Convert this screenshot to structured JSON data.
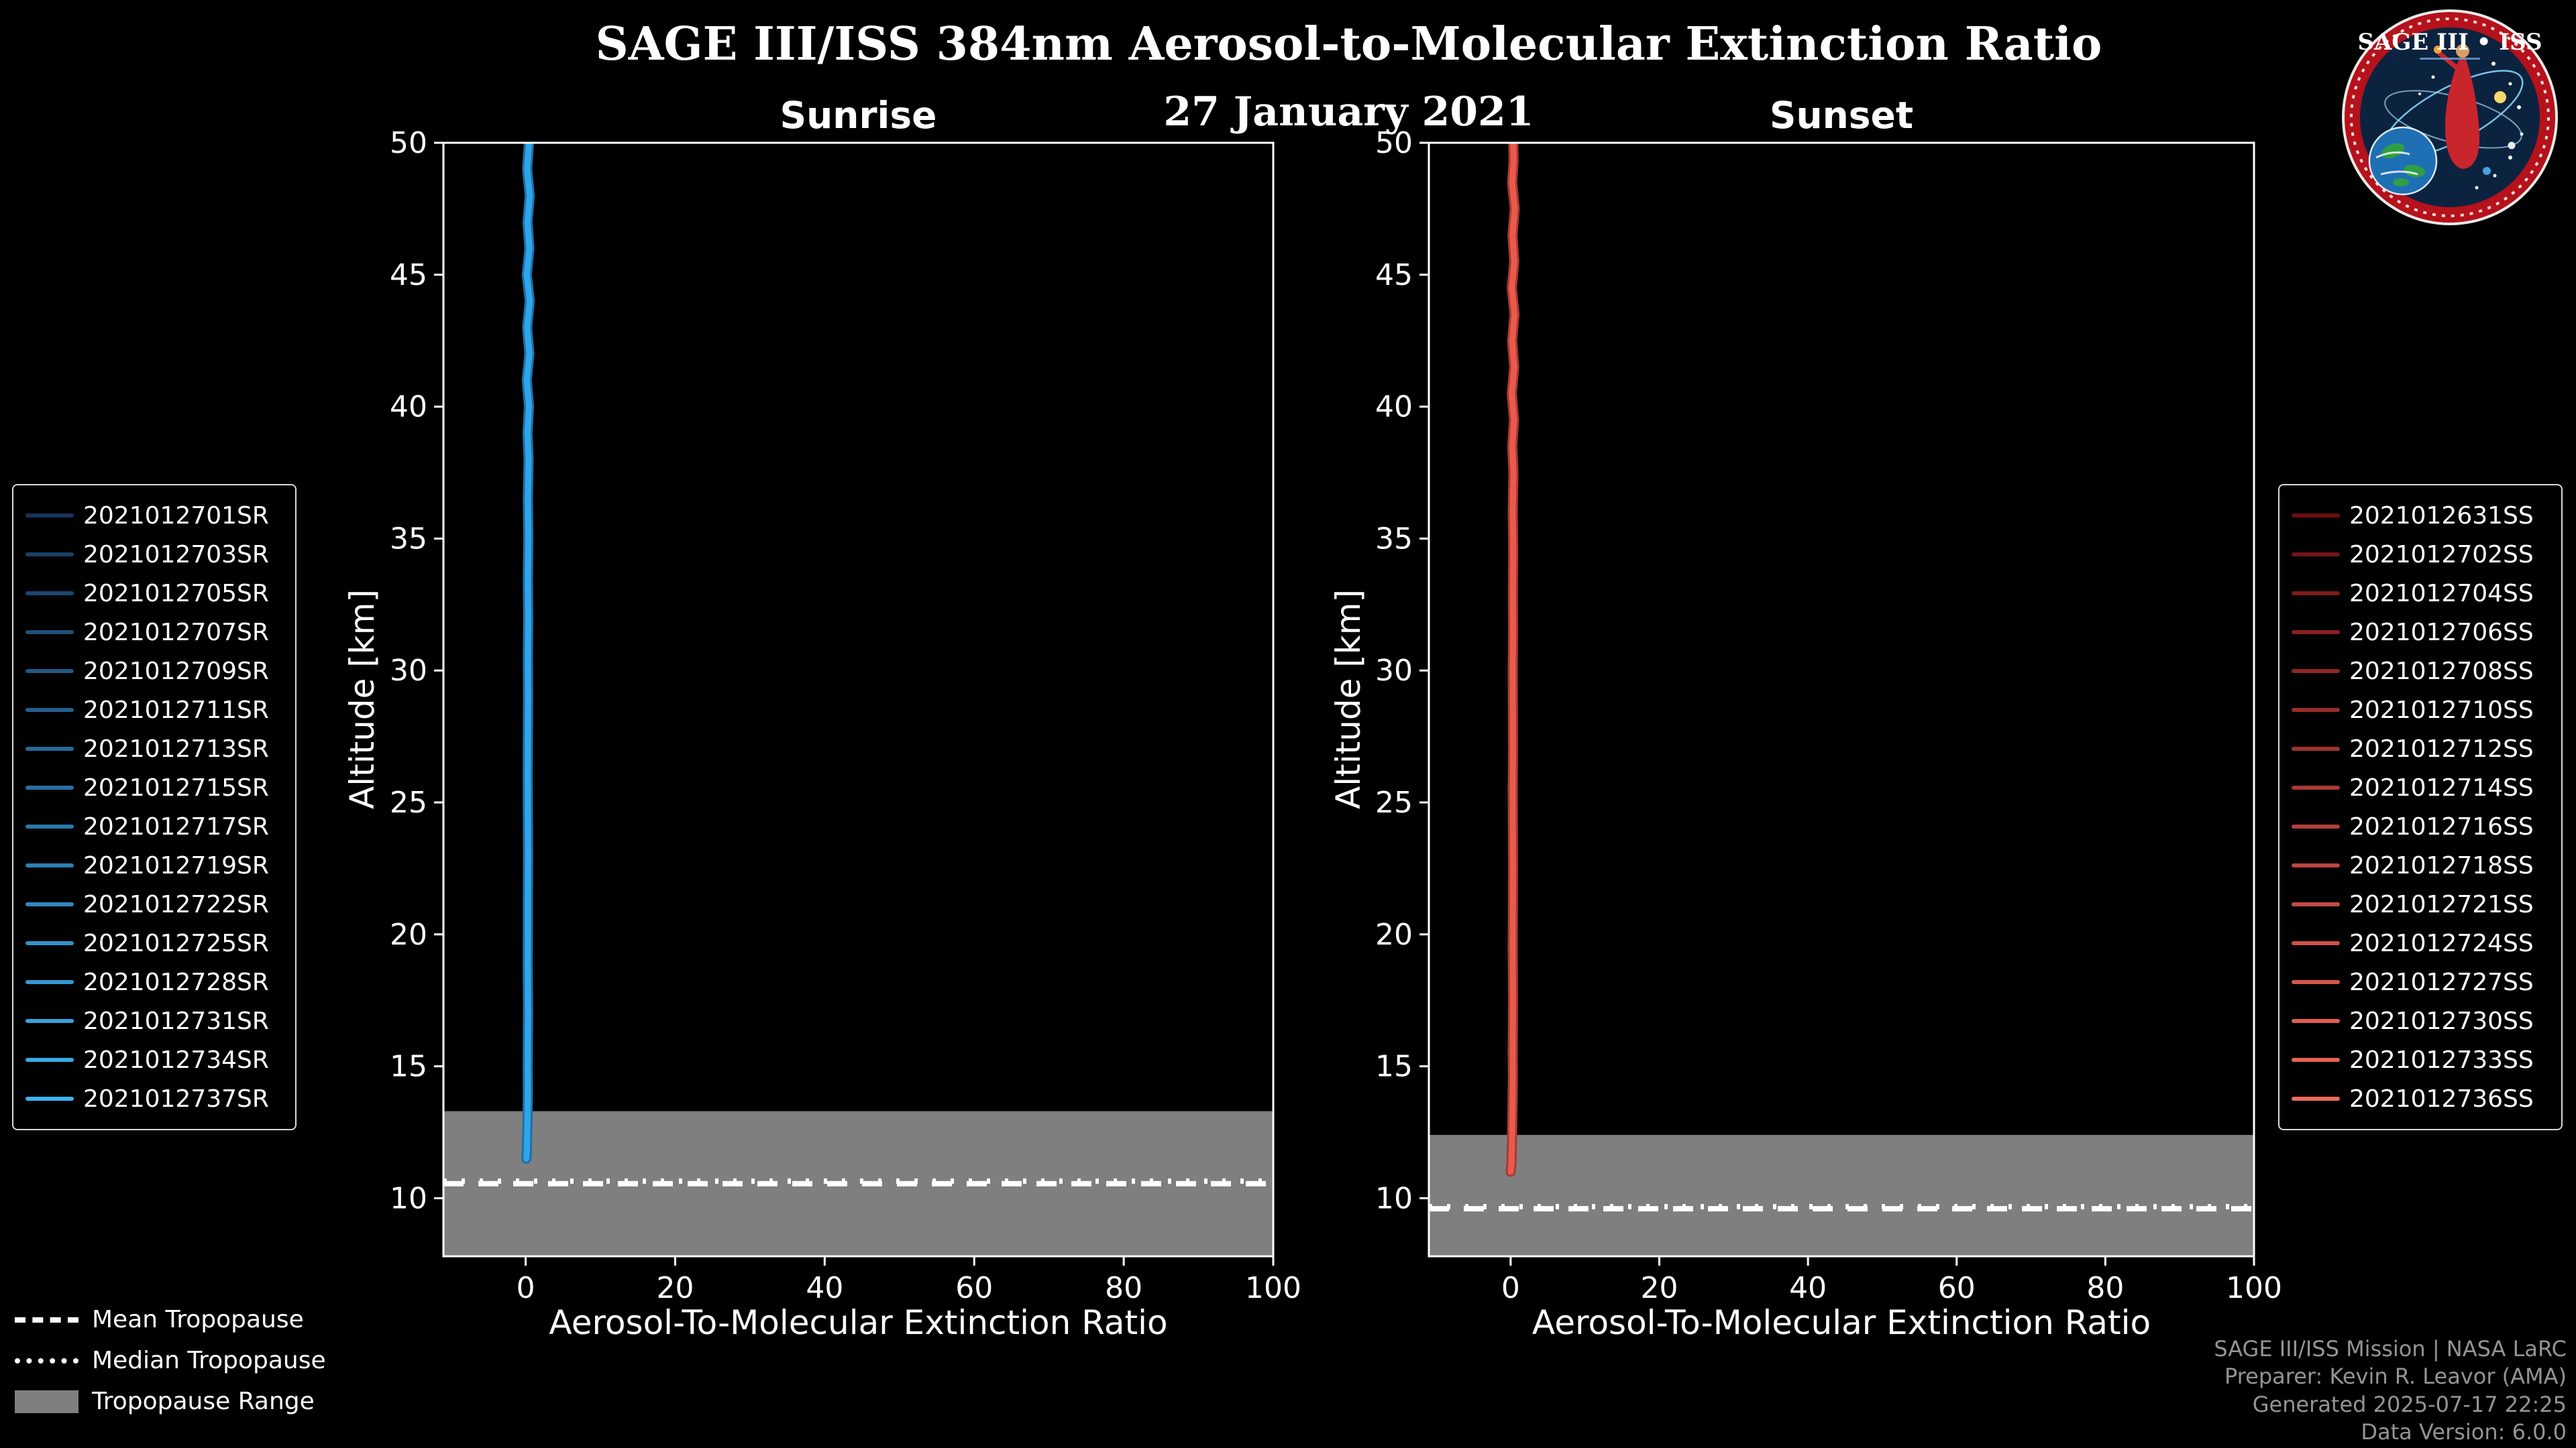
{
  "title": "SAGE III/ISS 384nm Aerosol-to-Molecular Extinction Ratio",
  "date": "27 January 2021",
  "logo": {
    "title": "SAGE III • ISS"
  },
  "tropopause_legend": [
    {
      "label": "Mean Tropopause",
      "style": "dashed"
    },
    {
      "label": "Median Tropopause",
      "style": "dotted"
    },
    {
      "label": "Tropopause Range",
      "style": "band"
    }
  ],
  "footer": {
    "line1": "SAGE III/ISS Mission | NASA LaRC",
    "line2": "Preparer: Kevin R. Leavor (AMA)",
    "line3": "Generated 2025-07-17 22:25",
    "line4": "Data Version: 6.0.0"
  },
  "colors": {
    "background": "#000000",
    "text": "#ffffff",
    "tropopause_band": "#7f7f7f",
    "tropopause_line": "#ffffff",
    "legend_border": "#d9d9d9",
    "footer_text": "#949494"
  },
  "chart_data": [
    {
      "type": "line",
      "title": "Sunrise",
      "xlabel": "Aerosol-To-Molecular Extinction Ratio",
      "ylabel": "Altitude [km]",
      "xlim": [
        -11,
        100
      ],
      "ylim": [
        7.8,
        50
      ],
      "xticks": [
        0,
        20,
        40,
        60,
        80,
        100
      ],
      "yticks": [
        10,
        15,
        20,
        25,
        30,
        35,
        40,
        45,
        50
      ],
      "grid": false,
      "legend_position": "outside-left",
      "line_color": "#2EA6EA",
      "line_core_color": "#1F6FA8",
      "mean_tropopause_km": 10.55,
      "median_tropopause_km": 10.65,
      "tropopause_range_km": [
        7.8,
        13.3
      ],
      "profile": {
        "note": "All 16 sunrise profiles overlap as a near-vertical line at ratio ~0 from ~11.5 km up to 50 km",
        "altitude_km": [
          11.5,
          11.8,
          12.3,
          13.0,
          14.0,
          15.0,
          16.0,
          17.0,
          18.0,
          19.0,
          20.0,
          21.5,
          23.0,
          24.5,
          26.0,
          27.5,
          29.0,
          30.5,
          32.0,
          33.5,
          35.0,
          36.5,
          38.0,
          39.0,
          40.0,
          41.0,
          42.0,
          43.0,
          44.0,
          45.0,
          46.0,
          47.0,
          48.0,
          49.0,
          50.0
        ],
        "ratio": [
          0.1,
          0.15,
          0.2,
          0.25,
          0.3,
          0.28,
          0.3,
          0.32,
          0.3,
          0.28,
          0.3,
          0.3,
          0.32,
          0.3,
          0.28,
          0.3,
          0.32,
          0.3,
          0.34,
          0.3,
          0.36,
          0.3,
          0.4,
          0.25,
          0.45,
          0.15,
          0.5,
          0.2,
          0.55,
          0.15,
          0.5,
          0.25,
          0.55,
          0.2,
          0.45
        ]
      },
      "series": [
        {
          "name": "2021012701SR",
          "color": "#16365C"
        },
        {
          "name": "2021012703SR",
          "color": "#193E66"
        },
        {
          "name": "2021012705SR",
          "color": "#1B4770"
        },
        {
          "name": "2021012707SR",
          "color": "#1E4F7A"
        },
        {
          "name": "2021012709SR",
          "color": "#205783"
        },
        {
          "name": "2021012711SR",
          "color": "#235F8D"
        },
        {
          "name": "2021012713SR",
          "color": "#266897"
        },
        {
          "name": "2021012715SR",
          "color": "#2870A1"
        },
        {
          "name": "2021012717SR",
          "color": "#2B78AB"
        },
        {
          "name": "2021012719SR",
          "color": "#2D80B5"
        },
        {
          "name": "2021012722SR",
          "color": "#3089BF"
        },
        {
          "name": "2021012725SR",
          "color": "#3391C8"
        },
        {
          "name": "2021012728SR",
          "color": "#3599D2"
        },
        {
          "name": "2021012731SR",
          "color": "#38A1DC"
        },
        {
          "name": "2021012734SR",
          "color": "#3AAAE6"
        },
        {
          "name": "2021012737SR",
          "color": "#3DB2F0"
        }
      ]
    },
    {
      "type": "line",
      "title": "Sunset",
      "xlabel": "Aerosol-To-Molecular Extinction Ratio",
      "ylabel": "Altitude [km]",
      "xlim": [
        -11,
        100
      ],
      "ylim": [
        7.8,
        50
      ],
      "xticks": [
        0,
        20,
        40,
        60,
        80,
        100
      ],
      "yticks": [
        10,
        15,
        20,
        25,
        30,
        35,
        40,
        45,
        50
      ],
      "grid": false,
      "legend_position": "outside-right",
      "line_color": "#EA5A4C",
      "line_core_color": "#A83A32",
      "mean_tropopause_km": 9.6,
      "median_tropopause_km": 9.68,
      "tropopause_range_km": [
        7.8,
        12.4
      ],
      "profile": {
        "note": "All 16 sunset profiles overlap as a near-vertical line at ratio ~0 from ~11 km up to 50 km",
        "altitude_km": [
          11.0,
          11.3,
          11.8,
          12.5,
          13.5,
          14.5,
          15.5,
          16.5,
          17.5,
          18.5,
          19.5,
          21.0,
          22.5,
          24.0,
          25.5,
          27.0,
          28.5,
          30.0,
          31.5,
          33.0,
          34.5,
          36.0,
          37.5,
          38.5,
          39.5,
          40.5,
          41.5,
          42.5,
          43.5,
          44.5,
          45.5,
          46.5,
          47.5,
          48.5,
          49.3,
          50.0
        ],
        "ratio": [
          0.0,
          0.1,
          0.15,
          0.2,
          0.25,
          0.3,
          0.28,
          0.3,
          0.32,
          0.3,
          0.28,
          0.3,
          0.32,
          0.3,
          0.28,
          0.32,
          0.3,
          0.28,
          0.33,
          0.3,
          0.35,
          0.28,
          0.38,
          0.22,
          0.45,
          0.15,
          0.48,
          0.2,
          0.52,
          0.15,
          0.5,
          0.25,
          0.55,
          0.2,
          0.4,
          0.35
        ]
      },
      "series": [
        {
          "name": "2021012631SS",
          "color": "#6B0F14"
        },
        {
          "name": "2021012702SS",
          "color": "#741519"
        },
        {
          "name": "2021012704SS",
          "color": "#7D1B1D"
        },
        {
          "name": "2021012706SS",
          "color": "#862122"
        },
        {
          "name": "2021012708SS",
          "color": "#8E2727"
        },
        {
          "name": "2021012710SS",
          "color": "#972D2B"
        },
        {
          "name": "2021012712SS",
          "color": "#A03330"
        },
        {
          "name": "2021012714SS",
          "color": "#A93935"
        },
        {
          "name": "2021012716SS",
          "color": "#B23F39"
        },
        {
          "name": "2021012718SS",
          "color": "#BB453E"
        },
        {
          "name": "2021012721SS",
          "color": "#C44B43"
        },
        {
          "name": "2021012724SS",
          "color": "#CC5147"
        },
        {
          "name": "2021012727SS",
          "color": "#D5574C"
        },
        {
          "name": "2021012730SS",
          "color": "#DE5D51"
        },
        {
          "name": "2021012733SS",
          "color": "#E76355"
        },
        {
          "name": "2021012736SS",
          "color": "#F0695A"
        }
      ]
    }
  ]
}
